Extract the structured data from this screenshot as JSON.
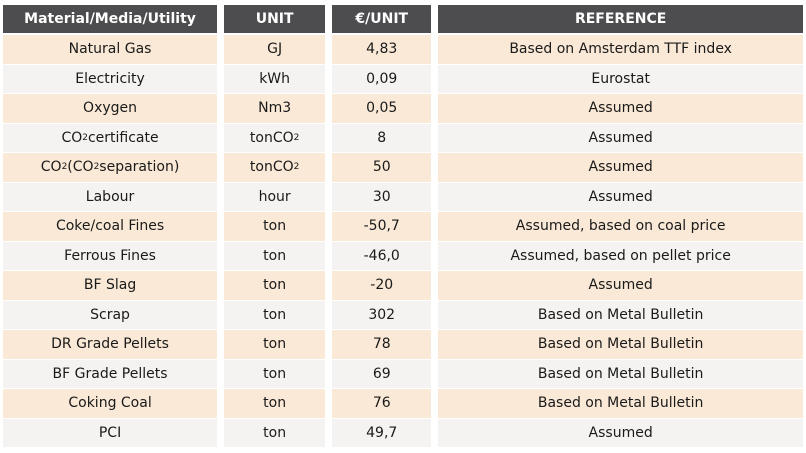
{
  "headers": {
    "material": "Material/Media/Utility",
    "unit": "UNIT",
    "price": "€/UNIT",
    "reference": "REFERENCE"
  },
  "rows": [
    {
      "material": "Natural Gas",
      "unit": "GJ",
      "price": "4,83",
      "reference": "Based on Amsterdam TTF index"
    },
    {
      "material": "Electricity",
      "unit": "kWh",
      "price": "0,09",
      "reference": "Eurostat"
    },
    {
      "material": "Oxygen",
      "unit": "Nm3",
      "price": "0,05",
      "reference": "Assumed"
    },
    {
      "material_pre": "CO",
      "material_sub": "2",
      "material_post": " certificate",
      "unit_pre": "tonCO",
      "unit_sub": "2",
      "price": "8",
      "reference": "Assumed"
    },
    {
      "material_pre": "CO",
      "material_sub": "2",
      "material_mid": " (CO",
      "material_sub2": "2",
      "material_post": " separation)",
      "unit_pre": "tonCO",
      "unit_sub": "2",
      "price": "50",
      "reference": "Assumed"
    },
    {
      "material": "Labour",
      "unit": "hour",
      "price": "30",
      "reference": "Assumed"
    },
    {
      "material": "Coke/coal Fines",
      "unit": "ton",
      "price": "-50,7",
      "reference": "Assumed, based on coal price"
    },
    {
      "material": "Ferrous Fines",
      "unit": "ton",
      "price": "-46,0",
      "reference": "Assumed, based on pellet price"
    },
    {
      "material": "BF Slag",
      "unit": "ton",
      "price": "-20",
      "reference": "Assumed"
    },
    {
      "material": "Scrap",
      "unit": "ton",
      "price": "302",
      "reference": "Based on Metal Bulletin"
    },
    {
      "material": "DR Grade Pellets",
      "unit": "ton",
      "price": "78",
      "reference": "Based on Metal Bulletin"
    },
    {
      "material": "BF Grade Pellets",
      "unit": "ton",
      "price": "69",
      "reference": "Based on Metal Bulletin"
    },
    {
      "material": "Coking Coal",
      "unit": "ton",
      "price": "76",
      "reference": "Based on Metal Bulletin"
    },
    {
      "material": "PCI",
      "unit": "ton",
      "price": "49,7",
      "reference": "Assumed"
    }
  ]
}
